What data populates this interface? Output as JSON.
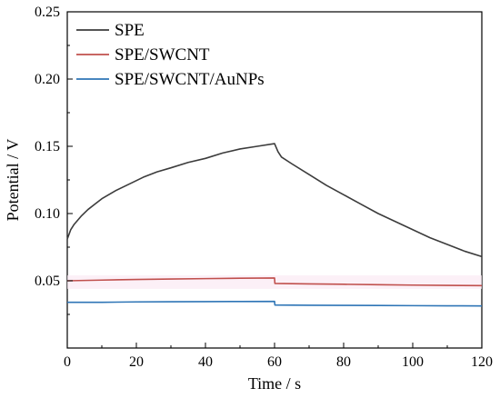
{
  "chart_data": {
    "type": "line",
    "title": "",
    "xlabel": "Time / s",
    "ylabel": "Potential / V",
    "xlim": [
      0,
      120
    ],
    "ylim": [
      0,
      0.25
    ],
    "x_ticks": [
      0,
      20,
      40,
      60,
      80,
      100,
      120
    ],
    "y_ticks": [
      0.05,
      0.1,
      0.15,
      0.2,
      0.25
    ],
    "x_tick_labels": [
      "0",
      "20",
      "40",
      "60",
      "80",
      "100",
      "120"
    ],
    "y_tick_labels": [
      "0.05",
      "0.10",
      "0.15",
      "0.20",
      "0.25"
    ],
    "grid": false,
    "legend_position": "top-left",
    "series": [
      {
        "name": "SPE",
        "color": "#3c3c3c",
        "x": [
          0,
          1,
          2,
          4,
          6,
          8,
          10,
          14,
          18,
          22,
          26,
          30,
          35,
          40,
          45,
          50,
          55,
          60,
          61,
          62,
          65,
          70,
          75,
          80,
          85,
          90,
          95,
          100,
          105,
          110,
          115,
          120
        ],
        "y": [
          0.081,
          0.088,
          0.092,
          0.098,
          0.103,
          0.107,
          0.111,
          0.117,
          0.122,
          0.127,
          0.131,
          0.134,
          0.138,
          0.141,
          0.145,
          0.148,
          0.15,
          0.152,
          0.146,
          0.142,
          0.137,
          0.129,
          0.121,
          0.114,
          0.107,
          0.1,
          0.094,
          0.088,
          0.082,
          0.077,
          0.072,
          0.068
        ]
      },
      {
        "name": "SPE/SWCNT",
        "color": "#c0504d",
        "x": [
          0,
          10,
          20,
          30,
          40,
          50,
          60,
          60.1,
          70,
          80,
          90,
          100,
          110,
          120
        ],
        "y": [
          0.05,
          0.0505,
          0.051,
          0.0513,
          0.0516,
          0.0519,
          0.0521,
          0.048,
          0.0477,
          0.0474,
          0.0471,
          0.0468,
          0.0466,
          0.0464
        ]
      },
      {
        "name": "SPE/SWCNT/AuNPs",
        "color": "#2e75b6",
        "x": [
          0,
          10,
          20,
          30,
          40,
          50,
          60,
          60.1,
          70,
          80,
          90,
          100,
          110,
          120
        ],
        "y": [
          0.034,
          0.034,
          0.0343,
          0.0344,
          0.0345,
          0.0346,
          0.0347,
          0.032,
          0.0318,
          0.0317,
          0.0316,
          0.0315,
          0.0314,
          0.0313
        ]
      }
    ]
  }
}
